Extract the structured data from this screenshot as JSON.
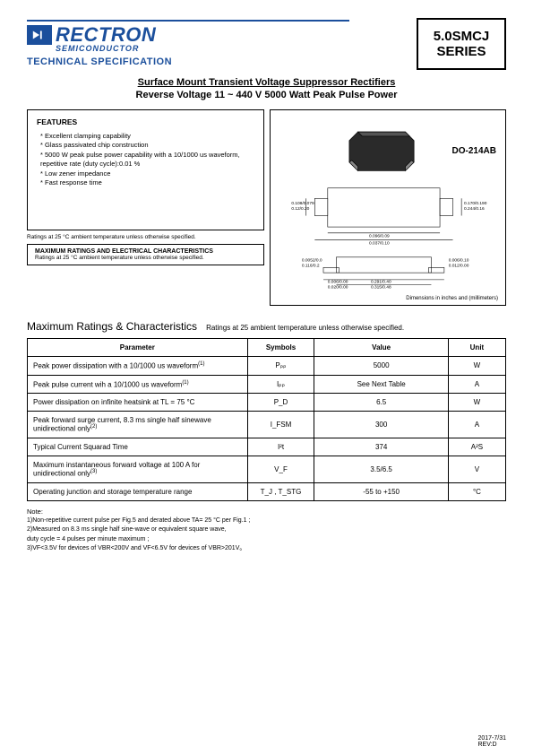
{
  "header": {
    "brand": "RECTRON",
    "brand_sub": "SEMICONDUCTOR",
    "tech_spec": "TECHNICAL SPECIFICATION",
    "series_line1": "5.0SMCJ",
    "series_line2": "SERIES"
  },
  "title": {
    "line1": "Surface Mount Transient Voltage Suppressor Rectifiers",
    "line2": "Reverse Voltage 11 ~ 440 V  5000 Watt Peak Pulse Power"
  },
  "features": {
    "heading": "FEATURES",
    "items": [
      "Excellent clamping capability",
      "Glass passivated chip construction",
      "5000 W peak pulse power capability with a 10/1000 us waveform, repetitive rate (duty cycle):0.01 %",
      "Low zener impedance",
      "Fast response time"
    ],
    "ratings_footnote": "Ratings at 25 °C ambient temperature unless otherwise specified."
  },
  "max_box": {
    "heading": "MAXIMUM RATINGS AND ELECTRICAL CHARACTERISTICS",
    "sub": "Ratings at 25 °C ambient temperature unless otherwise specified."
  },
  "package": {
    "label": "DO-214AB",
    "dim_note": "Dimensions in inches and (millimeters)",
    "dims": {
      "a": "0.108/0.079",
      "a_mm": "0.12/0.20",
      "b": "0.170/0.190",
      "b_mm": "0.244/0.16",
      "c": "0.096/0.09",
      "d": "0.037/0.10",
      "e": "0.0052/0.0",
      "f": "0.116/0.2",
      "g": "0.006/0.00",
      "h": "0.020/0.00",
      "i": "0.291/0.40",
      "j": "0.315/0.48",
      "k": "0.006/0.10",
      "l": "0.012/0.00"
    }
  },
  "ratings_section": {
    "title": "Maximum Ratings & Characteristics",
    "sub": "Ratings at 25   ambient temperature unless otherwise specified.",
    "columns": [
      "Parameter",
      "Symbols",
      "Value",
      "Unit"
    ],
    "rows": [
      {
        "param": "Peak power dissipation with a 10/1000 us waveform",
        "note": "(1)",
        "symbol": "Pₚₚ",
        "value": "5000",
        "unit": "W"
      },
      {
        "param": "Peak pulse current wih a 10/1000 us waveform",
        "note": "(1)",
        "symbol": "Iₚₚ",
        "value": "See Next Table",
        "unit": "A"
      },
      {
        "param": "Power dissipation on infinite heatsink at TL = 75 °C",
        "note": "",
        "symbol": "P_D",
        "value": "6.5",
        "unit": "W"
      },
      {
        "param": "Peak forward surge current, 8.3 ms single half sinewave unidirectional only",
        "note": "(2)",
        "symbol": "I_FSM",
        "value": "300",
        "unit": "A"
      },
      {
        "param": "Typical Current Squarad Time",
        "note": "",
        "symbol": "I²t",
        "value": "374",
        "unit": "A²S"
      },
      {
        "param": "Maximum instantaneous forward voltage at 100 A for unidirectional only",
        "note": "(3)",
        "symbol": "V_F",
        "value": "3.5/6.5",
        "unit": "V"
      },
      {
        "param": "Operating junction and storage temperature range",
        "note": "",
        "symbol": "T_J , T_STG",
        "value": "-55 to +150",
        "unit": "°C"
      }
    ]
  },
  "notes": {
    "heading": "Note:",
    "items": [
      "1)Non-repetitive current pulse  per Fig.5 and derated above TA= 25 °C per Fig.1 ;",
      "2)Measured on 8.3 ms single half sine-wave or equivalent square wave,",
      "   duty cycle = 4 pulses per minute maximum ;",
      "3)VF<3.5V for devices of VBR<200V and VF<6.5V for devices of VBR>201V。"
    ]
  },
  "footer": {
    "date": "2017-7/31",
    "rev": "REV:D"
  },
  "colors": {
    "brand_blue": "#1b4f9c",
    "black": "#000000"
  }
}
